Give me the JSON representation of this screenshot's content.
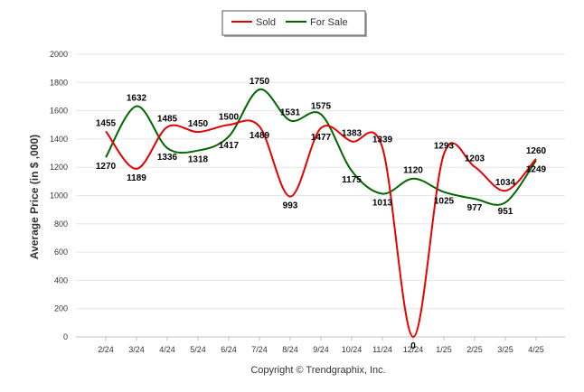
{
  "chart_data": {
    "type": "line",
    "categories": [
      "2/24",
      "3/24",
      "4/24",
      "5/24",
      "6/24",
      "7/24",
      "8/24",
      "9/24",
      "10/24",
      "11/24",
      "12/24",
      "1/25",
      "2/25",
      "3/25",
      "4/25"
    ],
    "series": [
      {
        "name": "Sold",
        "color": "#e60000",
        "values": [
          1455,
          1189,
          1485,
          1450,
          1500,
          1489,
          993,
          1477,
          1383,
          1339,
          0,
          1293,
          1203,
          1034,
          1260
        ]
      },
      {
        "name": "For Sale",
        "color": "#006600",
        "values": [
          1270,
          1632,
          1336,
          1318,
          1417,
          1750,
          1531,
          1575,
          1175,
          1013,
          1120,
          1025,
          977,
          951,
          1249
        ]
      }
    ],
    "ylabel": "Average Price (in $ ,000)",
    "ylim": [
      0,
      2000
    ],
    "yticks": [
      0,
      200,
      400,
      600,
      800,
      1000,
      1200,
      1400,
      1600,
      1800,
      2000
    ],
    "grid": true,
    "legend_position": "top-center",
    "footer": "Copyright © Trendgraphix, Inc."
  }
}
